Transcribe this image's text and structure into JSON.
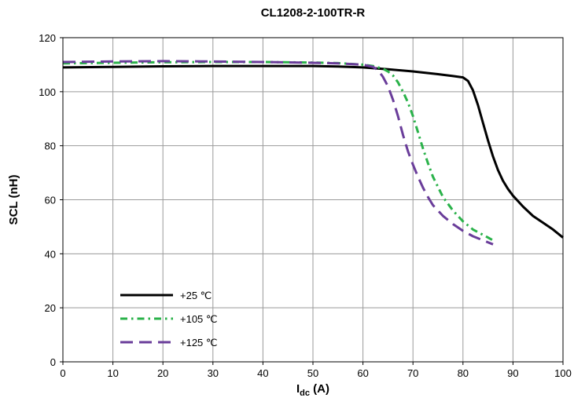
{
  "chart_data": {
    "type": "line",
    "title": "CL1208-2-100TR-R",
    "xlabel_main": "I",
    "xlabel_sub": "dc",
    "xlabel_unit": " (A)",
    "ylabel": "SCL (nH)",
    "xlim": [
      0,
      100
    ],
    "ylim": [
      0,
      120
    ],
    "xticks": [
      0,
      10,
      20,
      30,
      40,
      50,
      60,
      70,
      80,
      90,
      100
    ],
    "yticks": [
      0,
      20,
      40,
      60,
      80,
      100,
      120
    ],
    "grid": true,
    "legend_position": "bottom-left",
    "series": [
      {
        "name": "+25 ℃",
        "color": "#000000",
        "style": "solid",
        "x": [
          0,
          10,
          20,
          30,
          40,
          50,
          55,
          60,
          65,
          70,
          75,
          78,
          80,
          81,
          82,
          83,
          84,
          85,
          86,
          87,
          88,
          89,
          90,
          92,
          94,
          96,
          98,
          100
        ],
        "y": [
          109,
          109.2,
          109.4,
          109.5,
          109.5,
          109.5,
          109.3,
          109,
          108.3,
          107.5,
          106.5,
          105.8,
          105.3,
          104,
          100.5,
          95,
          88.5,
          82,
          76,
          71,
          67,
          64,
          61.5,
          57.5,
          54,
          51.5,
          49,
          46
        ]
      },
      {
        "name": "+105 ℃",
        "color": "#2ab24a",
        "style": "dashdot",
        "x": [
          0,
          10,
          20,
          30,
          40,
          50,
          55,
          60,
          62,
          64,
          65,
          66,
          67,
          68,
          69,
          70,
          71,
          72,
          73,
          74,
          76,
          78,
          80,
          82,
          84,
          86
        ],
        "y": [
          110.5,
          110.7,
          110.9,
          111,
          111,
          110.8,
          110.6,
          110,
          109.5,
          108.5,
          107.5,
          106,
          103.5,
          100,
          96,
          91,
          85,
          79,
          73.5,
          68.5,
          61,
          56,
          52,
          49,
          47,
          45
        ]
      },
      {
        "name": "+125 ℃",
        "color": "#6a3d9a",
        "style": "dash",
        "x": [
          0,
          10,
          20,
          30,
          40,
          50,
          55,
          60,
          62,
          63,
          64,
          65,
          66,
          67,
          68,
          69,
          70,
          71,
          72,
          73,
          74,
          76,
          78,
          80,
          82,
          84,
          86
        ],
        "y": [
          111,
          111.2,
          111.3,
          111.2,
          111,
          110.7,
          110.5,
          110,
          109.2,
          108,
          105.5,
          102,
          97,
          91,
          84,
          78,
          73,
          68.5,
          64.5,
          61,
          58,
          54,
          51,
          48.5,
          46.5,
          45,
          43.5
        ]
      }
    ]
  }
}
